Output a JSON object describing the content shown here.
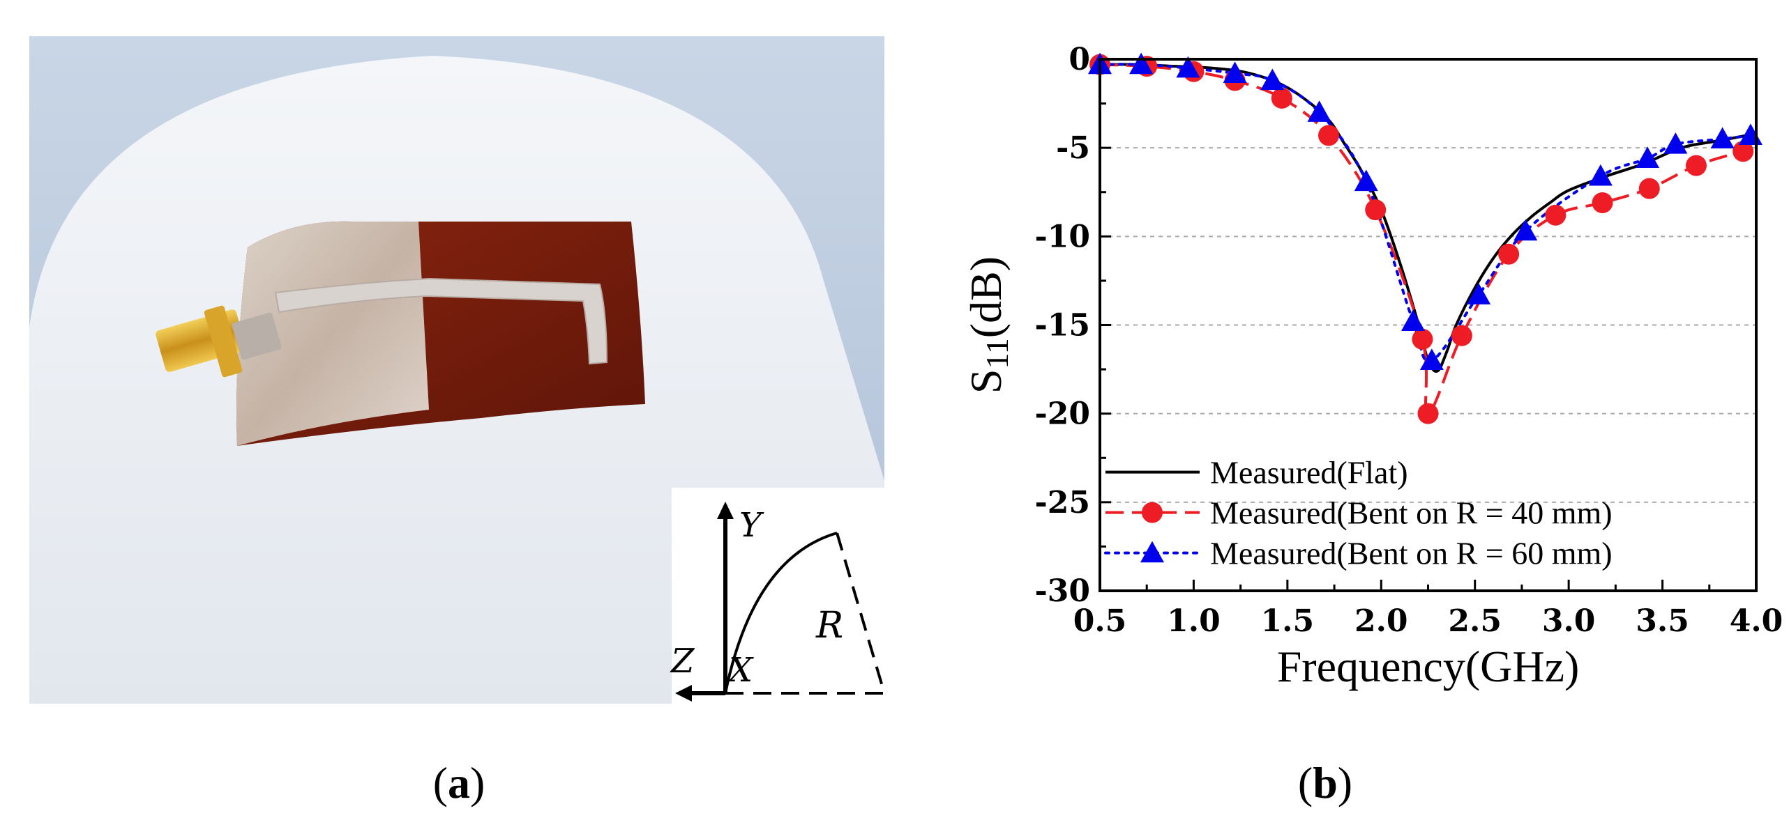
{
  "panels": {
    "a": {
      "caption_open": "(",
      "caption_letter": "a",
      "caption_close": ")"
    },
    "b": {
      "caption_open": "(",
      "caption_letter": "b",
      "caption_close": ")"
    }
  },
  "inset": {
    "labels": {
      "y": "Y",
      "z": "Z",
      "x": "X",
      "r": "R"
    }
  },
  "colors": {
    "flat": "#000000",
    "bent40": "#ee1c24",
    "bent60": "#0000ee",
    "substrate": "#7a1d0c",
    "copper": "#c8b8a8",
    "connector": "#d4a017",
    "foam": "#e9edf2"
  },
  "chart_data": {
    "type": "line",
    "xlabel": "Frequency(GHz)",
    "ylabel_main": "S",
    "ylabel_sub": "11",
    "ylabel_unit": "(dB)",
    "xlim": [
      0.5,
      4.0
    ],
    "ylim": [
      -30,
      0
    ],
    "x_ticks": [
      0.5,
      1.0,
      1.5,
      2.0,
      2.5,
      3.0,
      3.5,
      4.0
    ],
    "x_tick_labels": [
      "0.5",
      "1.0",
      "1.5",
      "2.0",
      "2.5",
      "3.0",
      "3.5",
      "4.0"
    ],
    "y_ticks": [
      0,
      -5,
      -10,
      -15,
      -20,
      -25,
      -30
    ],
    "y_tick_labels": [
      "0",
      "-5",
      "-10",
      "-15",
      "-20",
      "-25",
      "-30"
    ],
    "grid": "horizontal dashed",
    "legend_position": "bottom-left",
    "series": [
      {
        "name": "Measured(Flat)",
        "style": "solid",
        "marker": "none",
        "x": [
          0.5,
          0.7,
          0.9,
          1.1,
          1.3,
          1.5,
          1.7,
          1.8,
          1.9,
          2.0,
          2.1,
          2.2,
          2.25,
          2.3,
          2.35,
          2.4,
          2.5,
          2.6,
          2.7,
          2.8,
          2.9,
          3.0,
          3.2,
          3.4,
          3.6,
          3.8,
          4.0
        ],
        "y": [
          -0.3,
          -0.3,
          -0.4,
          -0.5,
          -0.8,
          -1.6,
          -3.2,
          -4.7,
          -6.4,
          -8.5,
          -11.5,
          -15.0,
          -17.0,
          -17.6,
          -16.5,
          -15.0,
          -12.9,
          -11.2,
          -9.9,
          -8.9,
          -8.1,
          -7.4,
          -6.6,
          -5.9,
          -5.0,
          -4.6,
          -4.2
        ]
      },
      {
        "name": "Measured(Bent on R = 40 mm)",
        "style": "dashed",
        "marker": "circle",
        "x": [
          0.5,
          0.75,
          1.0,
          1.22,
          1.47,
          1.72,
          1.97,
          2.22,
          2.25,
          2.43,
          2.68,
          2.93,
          3.18,
          3.43,
          3.68,
          3.93
        ],
        "y": [
          -0.3,
          -0.4,
          -0.7,
          -1.2,
          -2.2,
          -4.3,
          -8.5,
          -15.8,
          -20.0,
          -15.6,
          -11.0,
          -8.8,
          -8.1,
          -7.3,
          -6.0,
          -5.2
        ]
      },
      {
        "name": "Measured(Bent on R = 60 mm)",
        "style": "dotted",
        "marker": "triangle",
        "x": [
          0.5,
          0.72,
          0.97,
          1.22,
          1.42,
          1.67,
          1.92,
          2.17,
          2.27,
          2.52,
          2.77,
          3.17,
          3.42,
          3.57,
          3.82,
          3.97
        ],
        "y": [
          -0.3,
          -0.3,
          -0.5,
          -0.8,
          -1.2,
          -3.0,
          -6.9,
          -14.8,
          -17.0,
          -13.3,
          -9.7,
          -6.6,
          -5.6,
          -4.8,
          -4.5,
          -4.3
        ]
      }
    ]
  }
}
